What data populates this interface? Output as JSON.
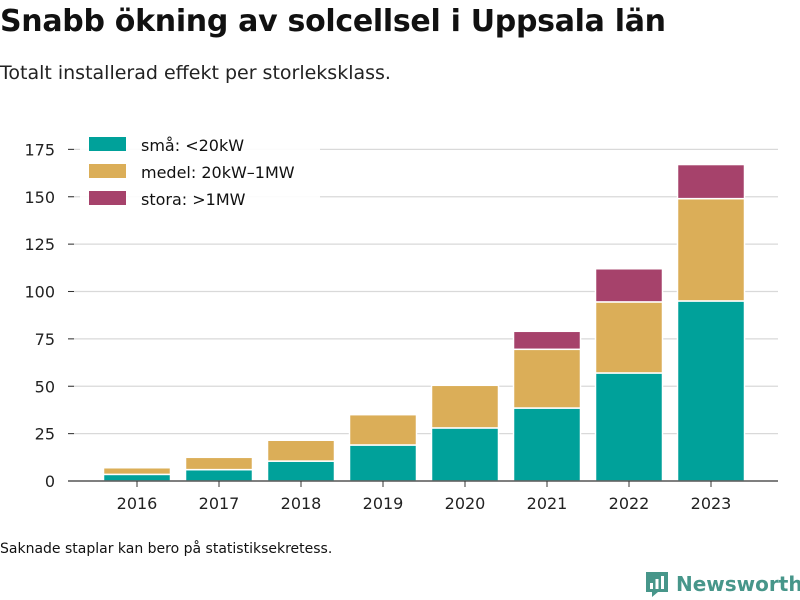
{
  "header": {
    "title": "Snabb ökning av solcellsel i Uppsala län",
    "subtitle": "Totalt installerad effekt per storleksklass."
  },
  "footnote": "Saknade staplar kan bero på statistiksekretess.",
  "brand": {
    "name": "Newsworthy",
    "color": "#47968a"
  },
  "colors": {
    "grid": "#d9d9d9",
    "axis": "#333333"
  },
  "chart_data": {
    "type": "bar",
    "stacked": true,
    "title": "Snabb ökning av solcellsel i Uppsala län",
    "subtitle": "Totalt installerad effekt per storleksklass.",
    "xlabel": "",
    "ylabel": "",
    "categories": [
      "2016",
      "2017",
      "2018",
      "2019",
      "2020",
      "2021",
      "2022",
      "2023"
    ],
    "yticks": [
      0,
      25,
      50,
      75,
      100,
      125,
      150,
      175
    ],
    "ylim": [
      0,
      190
    ],
    "grid": true,
    "legend_position": "top-left",
    "series": [
      {
        "name": "små: <20kW",
        "color": "#00a19a",
        "values": [
          3.5,
          6,
          10.5,
          19,
          28,
          38.5,
          57,
          95
        ]
      },
      {
        "name": "medel: 20kW–1MW",
        "color": "#dbae58",
        "values": [
          3.5,
          6.5,
          11,
          16,
          22.5,
          31,
          37.5,
          54
        ]
      },
      {
        "name": "stora: >1MW",
        "color": "#a6426b",
        "values": [
          0,
          0,
          0,
          0,
          0,
          9.5,
          17.5,
          18
        ]
      }
    ]
  }
}
